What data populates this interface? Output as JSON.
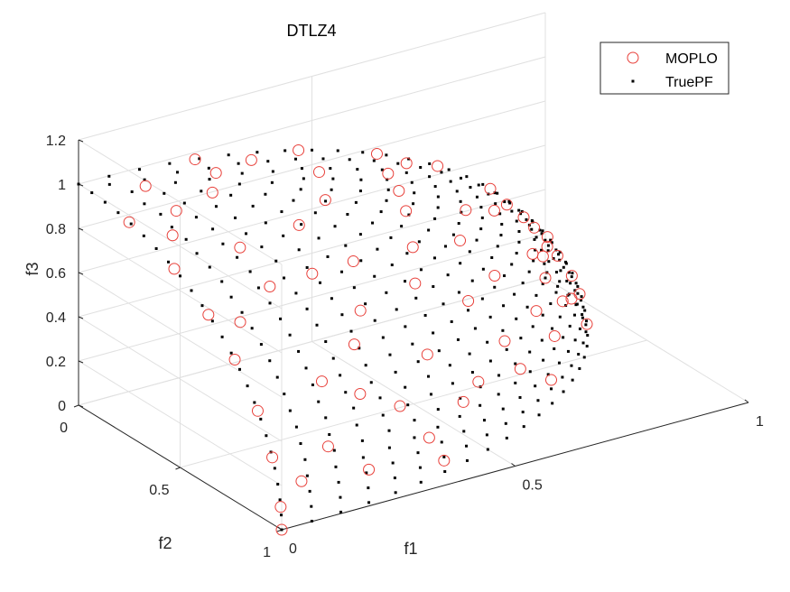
{
  "chart_data": {
    "type": "scatter",
    "title": "DTLZ4",
    "xlabel": "f1",
    "ylabel": "f2",
    "zlabel": "f3",
    "xlim": [
      0,
      1
    ],
    "ylim": [
      0,
      1
    ],
    "zlim": [
      0,
      1.2
    ],
    "xticks": [
      "0",
      "0.5",
      "1"
    ],
    "yticks": [
      "0",
      "0.5",
      "1"
    ],
    "zticks": [
      "0",
      "0.2",
      "0.4",
      "0.6",
      "0.8",
      "1",
      "1.2"
    ],
    "grid": true,
    "legend_position": "top-right",
    "series": [
      {
        "name": "MOPLO",
        "marker": "open-circle",
        "color": "#e8403a",
        "points": [
          [
            1.0,
            0.0,
            0.0
          ],
          [
            0.0,
            1.0,
            0.0
          ],
          [
            0.99,
            0.0,
            0.1
          ],
          [
            0.0,
            0.99,
            0.1
          ],
          [
            0.95,
            0.0,
            0.3
          ],
          [
            0.0,
            0.95,
            0.3
          ],
          [
            0.88,
            0.0,
            0.47
          ],
          [
            0.0,
            0.88,
            0.47
          ],
          [
            0.77,
            0.0,
            0.64
          ],
          [
            0.0,
            0.77,
            0.64
          ],
          [
            0.64,
            0.0,
            0.77
          ],
          [
            0.0,
            0.64,
            0.77
          ],
          [
            0.47,
            0.0,
            0.88
          ],
          [
            0.0,
            0.47,
            0.88
          ],
          [
            0.25,
            0.0,
            0.97
          ],
          [
            0.0,
            0.25,
            0.97
          ],
          [
            0.97,
            0.2,
            0.14
          ],
          [
            0.2,
            0.97,
            0.14
          ],
          [
            0.92,
            0.35,
            0.17
          ],
          [
            0.35,
            0.92,
            0.17
          ],
          [
            0.86,
            0.45,
            0.24
          ],
          [
            0.45,
            0.86,
            0.24
          ],
          [
            0.75,
            0.62,
            0.23
          ],
          [
            0.62,
            0.75,
            0.23
          ],
          [
            0.71,
            0.7,
            0.1
          ],
          [
            0.9,
            0.3,
            0.33
          ],
          [
            0.3,
            0.9,
            0.33
          ],
          [
            0.8,
            0.4,
            0.45
          ],
          [
            0.4,
            0.8,
            0.45
          ],
          [
            0.65,
            0.55,
            0.52
          ],
          [
            0.55,
            0.65,
            0.52
          ],
          [
            0.7,
            0.3,
            0.65
          ],
          [
            0.3,
            0.7,
            0.65
          ],
          [
            0.5,
            0.5,
            0.71
          ],
          [
            0.6,
            0.15,
            0.79
          ],
          [
            0.15,
            0.6,
            0.79
          ],
          [
            0.4,
            0.3,
            0.87
          ],
          [
            0.3,
            0.4,
            0.87
          ],
          [
            0.2,
            0.2,
            0.96
          ],
          [
            0.85,
            0.15,
            0.5
          ],
          [
            0.15,
            0.85,
            0.5
          ],
          [
            0.95,
            0.12,
            0.28
          ],
          [
            0.12,
            0.95,
            0.28
          ],
          [
            0.55,
            0.35,
            0.76
          ],
          [
            0.35,
            0.55,
            0.76
          ],
          [
            0.45,
            0.15,
            0.88
          ],
          [
            0.15,
            0.45,
            0.88
          ],
          [
            0.1,
            0.1,
            0.99
          ],
          [
            0.82,
            0.5,
            0.28
          ],
          [
            0.5,
            0.82,
            0.28
          ],
          [
            0.92,
            0.38,
            0.05
          ],
          [
            0.38,
            0.92,
            0.05
          ],
          [
            0.78,
            0.25,
            0.57
          ],
          [
            0.25,
            0.78,
            0.57
          ],
          [
            0.62,
            0.45,
            0.64
          ],
          [
            0.45,
            0.62,
            0.64
          ],
          [
            0.05,
            0.35,
            0.94
          ],
          [
            0.35,
            0.05,
            0.94
          ],
          [
            0.98,
            0.05,
            0.18
          ],
          [
            0.05,
            0.98,
            0.18
          ],
          [
            0.68,
            0.05,
            0.73
          ],
          [
            0.05,
            0.68,
            0.73
          ],
          [
            0.25,
            0.1,
            0.96
          ],
          [
            0.1,
            0.25,
            0.96
          ],
          [
            0.88,
            0.22,
            0.42
          ],
          [
            0.22,
            0.88,
            0.42
          ],
          [
            0.58,
            0.25,
            0.78
          ],
          [
            0.25,
            0.58,
            0.78
          ],
          [
            0.72,
            0.6,
            0.35
          ],
          [
            0.6,
            0.72,
            0.35
          ]
        ]
      },
      {
        "name": "TruePF",
        "marker": "dot",
        "color": "#000000",
        "generated": "unit-sphere grid"
      }
    ]
  },
  "legend": {
    "items": [
      {
        "label": "MOPLO"
      },
      {
        "label": "TruePF"
      }
    ]
  }
}
